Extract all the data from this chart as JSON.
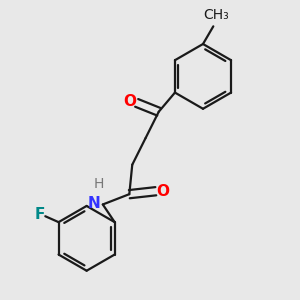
{
  "bg_color": "#e8e8e8",
  "bond_color": "#1a1a1a",
  "bond_width": 1.6,
  "atom_colors": {
    "O": "#ff0000",
    "N": "#3333ff",
    "F": "#008888",
    "H": "#777777",
    "C": "#1a1a1a"
  },
  "font_size": 10,
  "fig_size": [
    3.0,
    3.0
  ],
  "dpi": 100
}
